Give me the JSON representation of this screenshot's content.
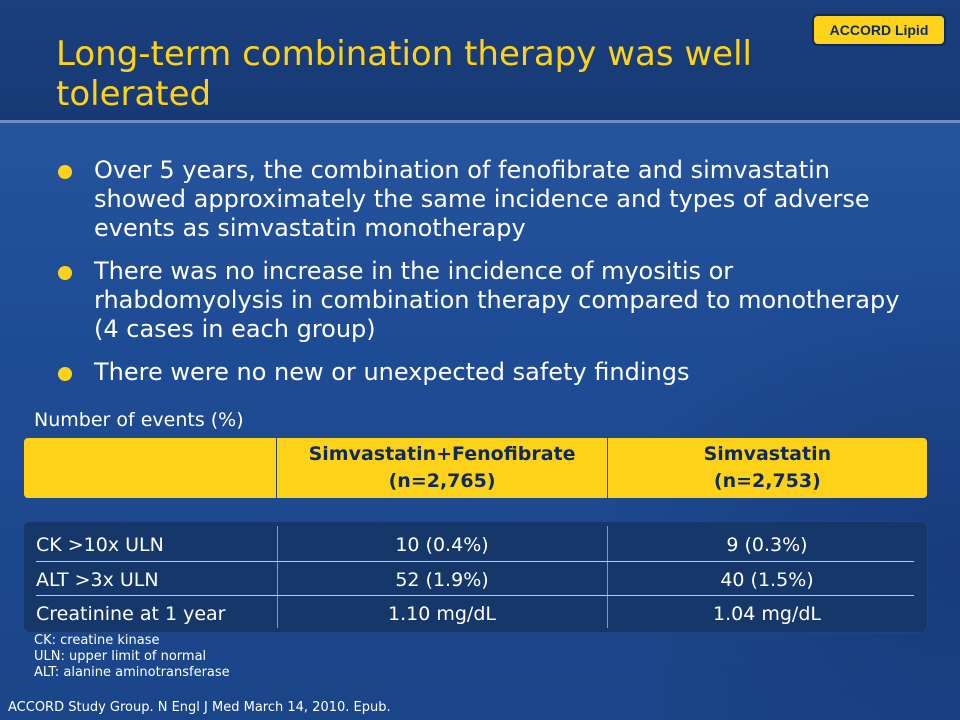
{
  "title": "Long-term combination therapy was well tolerated",
  "badge": "ACCORD Lipid",
  "bullets": [
    "Over 5 years, the combination of fenofibrate and simvastatin showed approximately the same incidence and types of adverse events as simvastatin monotherapy",
    "There was no increase in the incidence of myositis or rhabdomyolysis in combination therapy compared to monotherapy (4 cases in each group)",
    "There were no new or unexpected safety findings"
  ],
  "table": {
    "caption": "Number of events (%)",
    "headers": [
      {
        "line1": "",
        "line2": ""
      },
      {
        "line1": "Simvastatin+Fenofibrate",
        "line2": "(n=2,765)"
      },
      {
        "line1": "Simvastatin",
        "line2": "(n=2,753)"
      }
    ],
    "rows": [
      [
        "CK >10x ULN",
        "10 (0.4%)",
        "9 (0.3%)"
      ],
      [
        "ALT >3x ULN",
        "52 (1.9%)",
        "40 (1.5%)"
      ],
      [
        "Creatinine at 1 year",
        "1.10 mg/dL",
        "1.04 mg/dL"
      ]
    ]
  },
  "notes": [
    "CK: creatine kinase",
    "ULN: upper limit of normal",
    "ALT: alanine aminotransferase"
  ],
  "citation": "ACCORD Study Group. N Engl J Med March 14, 2010. Epub.",
  "colors": {
    "accent": "#ffd21a",
    "background": "#1f4d96",
    "header": "#173a75",
    "table_body": "#163769",
    "text": "#ffffff"
  }
}
